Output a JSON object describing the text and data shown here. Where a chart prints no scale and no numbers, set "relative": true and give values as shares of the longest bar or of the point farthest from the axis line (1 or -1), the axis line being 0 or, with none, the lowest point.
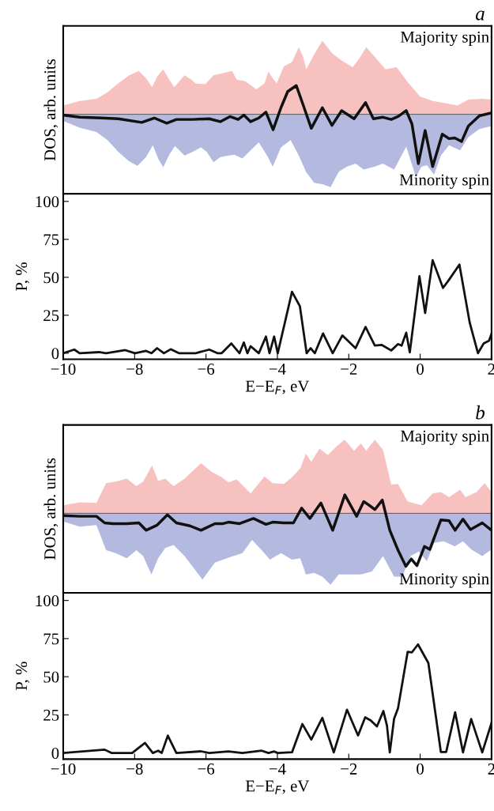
{
  "chart_data": [
    {
      "type": "area",
      "title": "a",
      "ylabel": "DOS, arb. units",
      "relative": true,
      "xlim": [
        -10,
        2
      ],
      "annotations": [
        "Majority spin",
        "Minority spin"
      ],
      "series": [
        {
          "color": "#f7c1c0",
          "x": [
            -10,
            -9.54,
            -9.07,
            -8.76,
            -8.46,
            -8.15,
            -7.88,
            -7.68,
            -7.51,
            -7.37,
            -7.2,
            -7.03,
            -6.89,
            -6.6,
            -6.41,
            -6.29,
            -6.02,
            -5.79,
            -5.52,
            -5.27,
            -5.14,
            -4.9,
            -4.59,
            -4.36,
            -4.25,
            -4.13,
            -4.02,
            -3.82,
            -3.59,
            -3.4,
            -3.28,
            -3.19,
            -3.01,
            -2.74,
            -2.47,
            -2.2,
            -1.89,
            -1.7,
            -1.51,
            -1.27,
            -0.97,
            -0.66,
            -0.35,
            0.0,
            0.35,
            0.73,
            1.04,
            1.35,
            1.74,
            2.0
          ],
          "values": [
            0.12,
            0.18,
            0.21,
            0.3,
            0.42,
            0.53,
            0.59,
            0.49,
            0.37,
            0.51,
            0.61,
            0.47,
            0.37,
            0.53,
            0.47,
            0.42,
            0.41,
            0.53,
            0.56,
            0.59,
            0.47,
            0.45,
            0.34,
            0.42,
            0.58,
            0.49,
            0.42,
            0.65,
            0.71,
            0.91,
            0.78,
            0.61,
            0.78,
            1.0,
            0.83,
            0.73,
            0.64,
            0.76,
            0.91,
            0.78,
            0.61,
            0.64,
            0.44,
            0.24,
            0.18,
            0.15,
            0.12,
            0.2,
            0.21,
            0.2
          ]
        },
        {
          "color": "#b4badf",
          "x": [
            -10,
            -9.54,
            -9.07,
            -8.76,
            -8.46,
            -8.15,
            -7.92,
            -7.68,
            -7.49,
            -7.34,
            -7.2,
            -7.03,
            -6.87,
            -6.6,
            -6.37,
            -6.14,
            -5.98,
            -5.79,
            -5.6,
            -5.37,
            -5.21,
            -4.98,
            -4.75,
            -4.52,
            -4.29,
            -4.13,
            -3.9,
            -3.63,
            -3.4,
            -3.2,
            -2.97,
            -2.74,
            -2.51,
            -2.28,
            -2.05,
            -1.81,
            -1.58,
            -1.27,
            -1.04,
            -0.73,
            -0.39,
            -0.12,
            0.04,
            0.19,
            0.39,
            0.58,
            0.81,
            1.12,
            1.35,
            1.66,
            2.0
          ],
          "values": [
            -0.09,
            -0.18,
            -0.24,
            -0.35,
            -0.51,
            -0.64,
            -0.7,
            -0.58,
            -0.42,
            -0.6,
            -0.72,
            -0.55,
            -0.43,
            -0.56,
            -0.51,
            -0.45,
            -0.51,
            -0.65,
            -0.58,
            -0.56,
            -0.55,
            -0.6,
            -0.49,
            -0.38,
            -0.56,
            -0.71,
            -0.45,
            -0.35,
            -0.56,
            -0.78,
            -0.93,
            -0.95,
            -0.99,
            -0.78,
            -0.71,
            -0.67,
            -0.75,
            -0.71,
            -0.67,
            -0.75,
            -0.44,
            -0.85,
            -0.71,
            -0.69,
            -0.82,
            -0.56,
            -0.42,
            -0.49,
            -0.31,
            -0.2,
            -0.16
          ]
        },
        {
          "type": "line",
          "color": "#111111",
          "x": [
            -10,
            -9.54,
            -8.92,
            -8.46,
            -7.8,
            -7.45,
            -7.1,
            -6.83,
            -6.37,
            -5.91,
            -5.6,
            -5.33,
            -5.1,
            -4.94,
            -4.75,
            -4.52,
            -4.32,
            -4.12,
            -3.9,
            -3.71,
            -3.47,
            -3.28,
            -3.05,
            -2.74,
            -2.47,
            -2.2,
            -1.85,
            -1.53,
            -1.31,
            -1.04,
            -0.81,
            -0.62,
            -0.39,
            -0.23,
            -0.05,
            0.14,
            0.35,
            0.62,
            0.81,
            0.97,
            1.16,
            1.35,
            1.66,
            2.0
          ],
          "values": [
            -0.01,
            -0.04,
            -0.05,
            -0.06,
            -0.11,
            -0.05,
            -0.12,
            -0.07,
            -0.07,
            -0.06,
            -0.1,
            -0.03,
            -0.07,
            -0.01,
            -0.1,
            -0.05,
            0.03,
            -0.21,
            0.09,
            0.31,
            0.39,
            0.13,
            -0.19,
            0.09,
            -0.15,
            0.05,
            -0.06,
            0.16,
            -0.06,
            -0.04,
            -0.07,
            -0.03,
            0.05,
            -0.13,
            -0.67,
            -0.22,
            -0.71,
            -0.27,
            -0.33,
            -0.32,
            -0.37,
            -0.16,
            -0.02,
            0.02
          ]
        }
      ]
    },
    {
      "type": "line",
      "ylabel": "P, %",
      "xlabel": "E−E$_{F}$, eV",
      "xlim": [
        -10,
        2
      ],
      "ylim": [
        -4,
        105
      ],
      "yticks": [
        0,
        25,
        50,
        75,
        100
      ],
      "xticks": [
        {
          "value": -10,
          "label": "−10"
        },
        {
          "value": -8,
          "label": "−8"
        },
        {
          "value": -6,
          "label": "−6"
        },
        {
          "value": -4,
          "label": "−4"
        },
        {
          "value": -2,
          "label": "−2"
        },
        0,
        2
      ],
      "series": [
        {
          "color": "#111111",
          "x": [
            -10,
            -9.69,
            -9.54,
            -9.0,
            -8.8,
            -8.26,
            -7.99,
            -7.68,
            -7.53,
            -7.37,
            -7.18,
            -6.99,
            -6.76,
            -6.29,
            -5.91,
            -5.68,
            -5.56,
            -5.29,
            -5.06,
            -4.94,
            -4.84,
            -4.75,
            -4.52,
            -4.32,
            -4.22,
            -4.09,
            -3.99,
            -3.59,
            -3.37,
            -3.18,
            -3.07,
            -2.95,
            -2.72,
            -2.45,
            -2.18,
            -1.81,
            -1.53,
            -1.27,
            -1.08,
            -0.81,
            -0.62,
            -0.52,
            -0.39,
            -0.29,
            -0.02,
            0.14,
            0.35,
            0.64,
            0.81,
            1.1,
            1.39,
            1.62,
            1.78,
            1.93,
            2.0
          ],
          "values": [
            0,
            2.4,
            0,
            0.7,
            0,
            2,
            0,
            1.5,
            0,
            3.3,
            0,
            2.6,
            0,
            0,
            2.4,
            0,
            0,
            6.4,
            0,
            7.1,
            0,
            4.6,
            0,
            11,
            0,
            11,
            0,
            40.5,
            31,
            0,
            3.3,
            0,
            13,
            0,
            11.7,
            3.3,
            17.3,
            5.1,
            5.5,
            1.8,
            6,
            5,
            13.5,
            0.5,
            50.7,
            26.5,
            61.3,
            43,
            48.4,
            58.4,
            20,
            0,
            6.4,
            8.2,
            12.8
          ]
        }
      ]
    },
    {
      "type": "area",
      "title": "b",
      "ylabel": "DOS, arb. units",
      "relative": true,
      "xlim": [
        -10,
        2
      ],
      "annotations": [
        "Majority spin",
        "Minority spin"
      ],
      "series": [
        {
          "color": "#f7c1c0",
          "x": [
            -10,
            -9.54,
            -9.07,
            -8.8,
            -8.53,
            -8.22,
            -7.95,
            -7.76,
            -7.51,
            -7.34,
            -7.14,
            -6.91,
            -6.6,
            -6.14,
            -5.83,
            -5.56,
            -5.37,
            -5.14,
            -4.75,
            -4.36,
            -4.13,
            -3.82,
            -3.59,
            -3.36,
            -3.2,
            -3.05,
            -2.82,
            -2.59,
            -2.36,
            -2.12,
            -1.85,
            -1.66,
            -1.51,
            -1.27,
            -1.04,
            -0.81,
            -0.62,
            -0.35,
            0.04,
            0.35,
            0.58,
            0.81,
            1.12,
            1.27,
            1.58,
            1.81,
            2.0
          ],
          "values": [
            0.11,
            0.15,
            0.14,
            0.41,
            0.43,
            0.47,
            0.37,
            0.43,
            0.65,
            0.44,
            0.47,
            0.37,
            0.47,
            0.68,
            0.56,
            0.49,
            0.42,
            0.46,
            0.27,
            0.5,
            0.41,
            0.4,
            0.49,
            0.61,
            0.81,
            0.7,
            0.88,
            0.79,
            0.9,
            1.0,
            0.85,
            0.95,
            0.85,
            1.0,
            0.86,
            0.39,
            0.4,
            0.16,
            0.11,
            0.27,
            0.29,
            0.22,
            0.32,
            0.22,
            0.29,
            0.41,
            0.29
          ]
        },
        {
          "color": "#b4badf",
          "x": [
            -10,
            -9.54,
            -9.07,
            -8.8,
            -8.53,
            -8.22,
            -7.95,
            -7.76,
            -7.53,
            -7.34,
            -7.14,
            -6.91,
            -6.6,
            -6.1,
            -5.75,
            -5.52,
            -5.29,
            -4.98,
            -4.71,
            -4.44,
            -4.21,
            -3.9,
            -3.59,
            -3.36,
            -3.2,
            -2.97,
            -2.74,
            -2.51,
            -2.28,
            -1.97,
            -1.66,
            -1.35,
            -1.04,
            -0.73,
            -0.5,
            -0.27,
            -0.04,
            0.19,
            0.39,
            0.66,
            0.97,
            1.2,
            1.43,
            1.74,
            2.0
          ],
          "values": [
            -0.11,
            -0.18,
            -0.16,
            -0.5,
            -0.54,
            -0.61,
            -0.5,
            -0.58,
            -0.83,
            -0.61,
            -0.47,
            -0.43,
            -0.58,
            -0.9,
            -0.67,
            -0.63,
            -0.59,
            -0.54,
            -0.36,
            -0.5,
            -0.63,
            -0.54,
            -0.63,
            -0.61,
            -0.83,
            -0.81,
            -0.86,
            -0.97,
            -0.83,
            -0.83,
            -0.83,
            -0.79,
            -0.58,
            -0.86,
            -0.86,
            -0.58,
            -0.52,
            -0.65,
            -0.4,
            -0.38,
            -0.45,
            -0.38,
            -0.49,
            -0.58,
            -0.49
          ]
        },
        {
          "type": "line",
          "color": "#111111",
          "x": [
            -10,
            -9.54,
            -9.07,
            -8.84,
            -8.61,
            -8.22,
            -7.88,
            -7.68,
            -7.37,
            -7.08,
            -6.83,
            -6.45,
            -6.14,
            -5.75,
            -5.52,
            -5.37,
            -5.06,
            -4.67,
            -4.32,
            -4.13,
            -3.82,
            -3.55,
            -3.32,
            -3.09,
            -2.78,
            -2.45,
            -2.11,
            -1.78,
            -1.58,
            -1.43,
            -1.27,
            -1.06,
            -0.85,
            -0.62,
            -0.4,
            -0.25,
            -0.09,
            0.12,
            0.27,
            0.58,
            0.81,
            0.98,
            1.2,
            1.41,
            1.74,
            2.0
          ],
          "values": [
            -0.03,
            -0.04,
            -0.04,
            -0.13,
            -0.14,
            -0.14,
            -0.13,
            -0.23,
            -0.16,
            -0.02,
            -0.13,
            -0.17,
            -0.23,
            -0.14,
            -0.14,
            -0.12,
            -0.14,
            -0.07,
            -0.15,
            -0.12,
            -0.13,
            -0.13,
            0.07,
            -0.07,
            0.14,
            -0.23,
            0.25,
            -0.04,
            0.16,
            0.11,
            0.05,
            0.18,
            -0.23,
            -0.5,
            -0.72,
            -0.62,
            -0.71,
            -0.45,
            -0.49,
            -0.09,
            -0.1,
            -0.23,
            -0.08,
            -0.22,
            -0.13,
            -0.23
          ]
        }
      ]
    },
    {
      "type": "line",
      "ylabel": "P, %",
      "xlabel": "E−E$_{F}$, eV",
      "xlim": [
        -10,
        2
      ],
      "ylim": [
        -4,
        105
      ],
      "yticks": [
        0,
        25,
        50,
        75,
        100
      ],
      "xticks": [
        {
          "value": -10,
          "label": "−10"
        },
        {
          "value": -8,
          "label": "−8"
        },
        {
          "value": -6,
          "label": "−6"
        },
        {
          "value": -4,
          "label": "−4"
        },
        {
          "value": -2,
          "label": "−2"
        },
        0,
        2
      ],
      "series": [
        {
          "color": "#111111",
          "x": [
            -10,
            -8.84,
            -8.65,
            -8.07,
            -7.95,
            -7.71,
            -7.49,
            -7.34,
            -7.24,
            -7.07,
            -6.83,
            -6.14,
            -5.91,
            -5.37,
            -4.98,
            -4.44,
            -4.25,
            -4.09,
            -3.99,
            -3.59,
            -3.3,
            -3.05,
            -2.74,
            -2.42,
            -2.05,
            -1.74,
            -1.54,
            -1.39,
            -1.21,
            -1.03,
            -0.93,
            -0.85,
            -0.73,
            -0.62,
            -0.35,
            -0.23,
            -0.06,
            0.23,
            0.58,
            0.73,
            0.98,
            1.2,
            1.43,
            1.74,
            2.0
          ],
          "values": [
            0,
            2.2,
            0,
            0,
            2.2,
            6.6,
            0,
            1.5,
            0,
            11.4,
            0,
            1.1,
            0,
            1,
            0,
            1.5,
            0,
            1,
            0,
            0.5,
            19,
            8.8,
            23,
            0.4,
            28.4,
            11.5,
            23.4,
            21.4,
            17.4,
            27.5,
            18,
            0.4,
            22.5,
            29.3,
            66.3,
            66,
            71.2,
            59,
            0.7,
            0.7,
            26.7,
            0.4,
            22.3,
            0.4,
            19.8
          ]
        }
      ]
    }
  ]
}
